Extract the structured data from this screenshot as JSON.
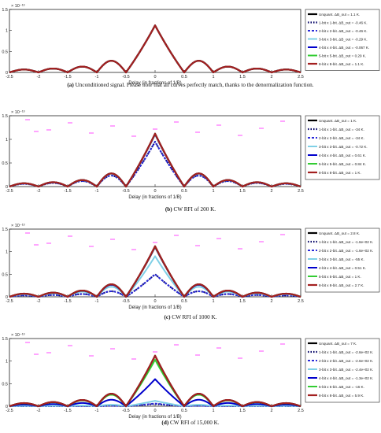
{
  "colors": {
    "unquant": "#000000",
    "b1": "#000066",
    "b2": "#2b2bd9",
    "b3": "#7fd0e6",
    "b4": "#0000cc",
    "b5": "#33cc33",
    "b8": "#a32020",
    "rfi": "#ff00ff"
  },
  "chart_data": [
    {
      "type": "line",
      "panel": "a",
      "caption_label": "(a)",
      "caption_text": "Unconditioned signal. Please note that all curves perfectly match, thanks to the denormalization function.",
      "y_exponent": "× 10⁻¹³",
      "xlabel": "Delay (in fractions of 1/B)",
      "xlim": [
        -2.5,
        2.5
      ],
      "ylim": [
        0,
        1.5
      ],
      "x_ticks": [
        "-2.5",
        "-2",
        "-1.5",
        "-1",
        "-0.5",
        "0",
        "0.5",
        "1",
        "1.5",
        "2",
        "2.5"
      ],
      "y_ticks": [
        "0",
        "0.5",
        "1",
        "1.5"
      ],
      "series": [
        {
          "name": "Unquant. ΔB_out = 1.1 K.",
          "peak": 1.12,
          "sidelobe": 0.25
        },
        {
          "name": "1-bit x 1-bit. ΔB_out = -0.46 K.",
          "peak": 1.12,
          "sidelobe": 0.25
        },
        {
          "name": "2-bit x 2-bit. ΔB_out = -0.46 K.",
          "peak": 1.12,
          "sidelobe": 0.25
        },
        {
          "name": "3-bit x 3-bit. ΔB_out = -0.29 K.",
          "peak": 1.12,
          "sidelobe": 0.25
        },
        {
          "name": "4-bit x 4-bit. ΔB_out = -0.067 K.",
          "peak": 1.12,
          "sidelobe": 0.25
        },
        {
          "name": "5-bit x 5-bit. ΔB_out = 0.29 K.",
          "peak": 1.12,
          "sidelobe": 0.25
        },
        {
          "name": "8-bit x 8-bit. ΔB_out = 1.1 K.",
          "peak": 1.12,
          "sidelobe": 0.25
        }
      ]
    },
    {
      "type": "line",
      "panel": "b",
      "caption_label": "(b)",
      "caption_text": "CW RFI of 200 K.",
      "y_exponent": "× 10⁻¹³",
      "xlabel": "Delay (in fractions of 1/B)",
      "xlim": [
        -2.5,
        2.5
      ],
      "ylim": [
        0,
        1.5
      ],
      "x_ticks": [
        "-2.5",
        "-2",
        "-1.5",
        "-1",
        "-0.5",
        "0",
        "0.5",
        "1",
        "1.5",
        "2",
        "2.5"
      ],
      "y_ticks": [
        "0",
        "0.5",
        "1",
        "1.5"
      ],
      "series": [
        {
          "name": "Unquant. ΔB_out = 1 K.",
          "peak": 1.12,
          "sidelobe": 0.25
        },
        {
          "name": "1-bit x 1-bit. ΔB_out = -34 K.",
          "peak": 0.95,
          "sidelobe": 0.21
        },
        {
          "name": "2-bit x 2-bit. ΔB_out = -34 K.",
          "peak": 0.95,
          "sidelobe": 0.21
        },
        {
          "name": "3-bit x 3-bit. ΔB_out = -0.72 K.",
          "peak": 1.1,
          "sidelobe": 0.24
        },
        {
          "name": "4-bit x 4-bit. ΔB_out = 0.61 K.",
          "peak": 1.11,
          "sidelobe": 0.25
        },
        {
          "name": "5-bit x 5-bit. ΔB_out = 0.84 K.",
          "peak": 1.12,
          "sidelobe": 0.25
        },
        {
          "name": "8-bit x 8-bit. ΔB_out = 1 K.",
          "peak": 1.12,
          "sidelobe": 0.25
        }
      ]
    },
    {
      "type": "line",
      "panel": "c",
      "caption_label": "(c)",
      "caption_text": "CW RFI of 1000 K.",
      "y_exponent": "× 10⁻¹³",
      "xlabel": "Delay (in fractions of 1/B)",
      "xlim": [
        -2.5,
        2.5
      ],
      "ylim": [
        0,
        1.5
      ],
      "x_ticks": [
        "-2.5",
        "-2",
        "-1.5",
        "-1",
        "-0.5",
        "0",
        "0.5",
        "1",
        "1.5",
        "2",
        "2.5"
      ],
      "y_ticks": [
        "0",
        "0.5",
        "1",
        "1.5"
      ],
      "series": [
        {
          "name": "Unquant. ΔB_out = 2.8 K.",
          "peak": 1.12,
          "sidelobe": 0.25
        },
        {
          "name": "1-bit x 1-bit. ΔB_out = -1.6e+02 K.",
          "peak": 0.5,
          "sidelobe": 0.11
        },
        {
          "name": "2-bit x 2-bit. ΔB_out = -1.6e+02 K.",
          "peak": 0.5,
          "sidelobe": 0.11
        },
        {
          "name": "3-bit x 3-bit. ΔB_out = -55 K.",
          "peak": 0.9,
          "sidelobe": 0.2
        },
        {
          "name": "4-bit x 4-bit. ΔB_out = 0.51 K.",
          "peak": 1.1,
          "sidelobe": 0.24
        },
        {
          "name": "5-bit x 5-bit. ΔB_out = 1 K.",
          "peak": 1.11,
          "sidelobe": 0.25
        },
        {
          "name": "8-bit x 8-bit. ΔB_out = 2.7 K.",
          "peak": 1.12,
          "sidelobe": 0.25
        }
      ]
    },
    {
      "type": "line",
      "panel": "d",
      "caption_label": "(d)",
      "caption_text": "CW RFI of 15,000 K.",
      "y_exponent": "× 10⁻¹³",
      "xlabel": "Delay (in fractions of 1/B)",
      "xlim": [
        -2.5,
        2.5
      ],
      "ylim": [
        0,
        1.5
      ],
      "x_ticks": [
        "-2.5",
        "-2",
        "-1.5",
        "-1",
        "-0.5",
        "0",
        "0.5",
        "1",
        "1.5",
        "2",
        "2.5"
      ],
      "y_ticks": [
        "0",
        "0.5",
        "1",
        "1.5"
      ],
      "series": [
        {
          "name": "Unquant. ΔB_out = 7 K.",
          "peak": 1.12,
          "sidelobe": 0.25
        },
        {
          "name": "1-bit x 1-bit. ΔB_out = -2.6e+02 K.",
          "peak": 0.05,
          "sidelobe": 0.01
        },
        {
          "name": "2-bit x 2-bit. ΔB_out = -2.6e+02 K.",
          "peak": 0.06,
          "sidelobe": 0.01
        },
        {
          "name": "3-bit x 3-bit. ΔB_out = -2.4e+02 K.",
          "peak": 0.12,
          "sidelobe": 0.03
        },
        {
          "name": "4-bit x 4-bit. ΔB_out = -1.3e+02 K.",
          "peak": 0.6,
          "sidelobe": 0.13
        },
        {
          "name": "5-bit x 5-bit. ΔB_out = -16 K.",
          "peak": 1.03,
          "sidelobe": 0.23
        },
        {
          "name": "8-bit x 8-bit. ΔB_out = 5.9 K.",
          "peak": 1.12,
          "sidelobe": 0.25
        }
      ]
    }
  ]
}
